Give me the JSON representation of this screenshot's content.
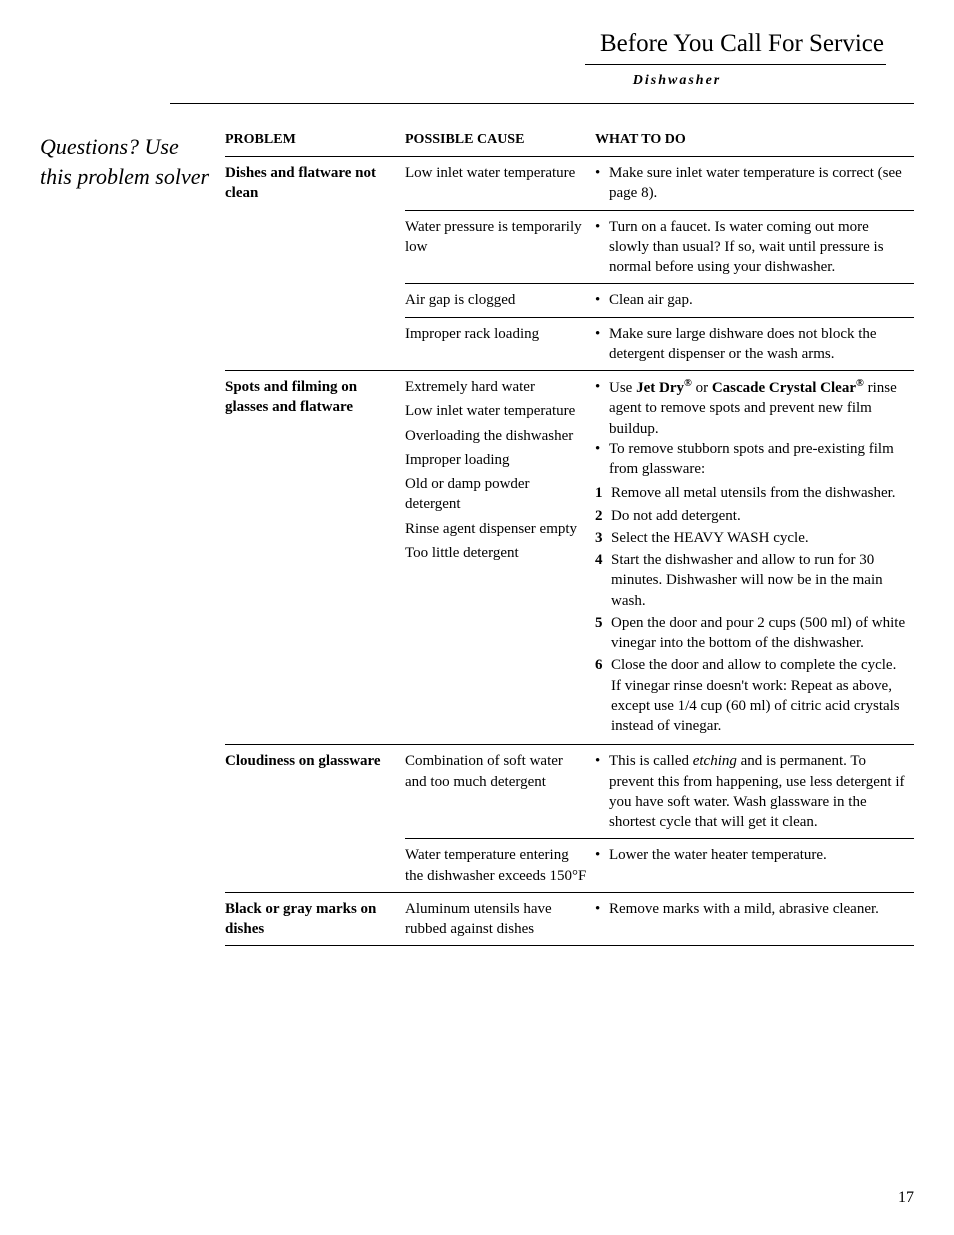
{
  "header": {
    "title": "Before You Call For Service",
    "subtitle": "Dishwasher"
  },
  "sidebar": {
    "text": "Questions? Use this problem solver"
  },
  "table": {
    "headers": [
      "PROBLEM",
      "POSSIBLE CAUSE",
      "WHAT TO DO"
    ],
    "rows": [
      {
        "problem": "Dishes and flatware not clean",
        "cause": "Low inlet water temperature",
        "solution_bullet": "•",
        "solution_html": "Make sure inlet water temperature is correct (see page 8)."
      },
      {
        "cause": "Water pressure is temporarily low",
        "solution_bullet": "•",
        "solution_html": "Turn on a faucet. Is water coming out more slowly than usual? If so, wait until pressure is normal before using your dishwasher."
      },
      {
        "cause": "Air gap is clogged",
        "solution_bullet": "•",
        "solution_html": "Clean air gap."
      },
      {
        "cause": "Improper rack loading",
        "solution_bullet": "•",
        "solution_html": "Make sure large dishware does not block the detergent dispenser or the wash arms."
      },
      {
        "problem": "Spots and filming on glasses and flatware",
        "cause_stack": [
          "Extremely hard water",
          "Low inlet water temperature",
          "Overloading the dishwasher",
          "Improper loading",
          "Old or damp powder detergent",
          "Rinse agent dispenser empty",
          "Too little detergent"
        ],
        "solutions": [
          {
            "bullet": "•",
            "html": "Use <b>Jet Dry<sup>®</sup></b> or <b>Cascade Crystal Clear<sup>®</sup></b> rinse agent to remove spots and prevent new film buildup."
          },
          {
            "bullet": "•",
            "html": "To remove stubborn spots and pre-existing film from glassware:",
            "steps": [
              {
                "n": "1",
                "t": "Remove all metal utensils from the dishwasher."
              },
              {
                "n": "2",
                "t": "Do not add detergent."
              },
              {
                "n": "3",
                "t": "Select the HEAVY WASH cycle."
              },
              {
                "n": "4",
                "t": "Start the dishwasher and allow to run for 30 minutes. Dishwasher will now be in the main wash."
              },
              {
                "n": "5",
                "t": "Open the door and pour 2 cups (500 ml) of white vinegar into the bottom of the dishwasher."
              },
              {
                "n": "6",
                "t": "Close the door and allow to complete the cycle. If vinegar rinse doesn't work: Repeat as above, except use 1/4 cup (60 ml) of citric acid crystals instead of vinegar."
              }
            ]
          }
        ]
      },
      {
        "problem": "Cloudiness on glassware",
        "cause": "Combination of soft water and too much detergent",
        "solution_bullet": "•",
        "solution_html": "This is called <i>etching</i> and is permanent. To prevent this from happening, use less detergent if you have soft water. Wash glassware in the shortest cycle that will get it clean."
      },
      {
        "cause": "Water temperature entering the dishwasher exceeds 150°F",
        "solution_bullet": "•",
        "solution_html": "Lower the water heater temperature."
      },
      {
        "problem": "Black or gray marks on dishes",
        "cause": "Aluminum utensils have rubbed against dishes",
        "solution_bullet": "•",
        "solution_html": "Remove marks with a mild, abrasive cleaner."
      }
    ]
  },
  "page_number": "17"
}
